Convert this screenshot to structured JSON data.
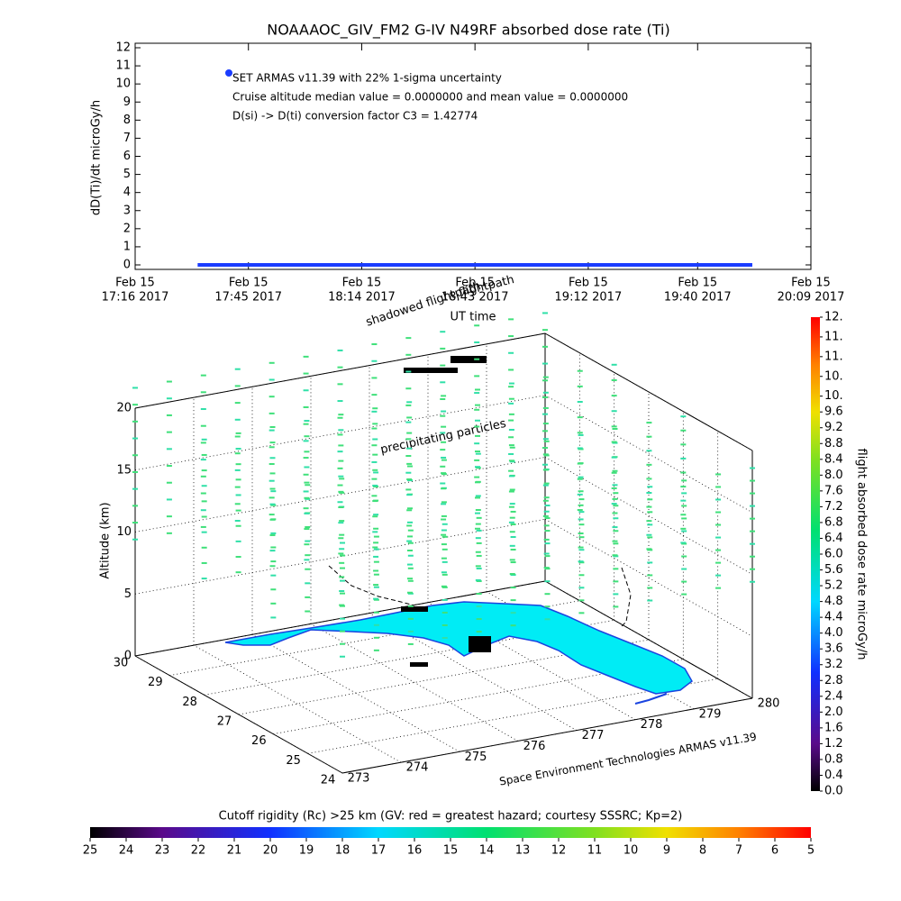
{
  "chart_data": [
    {
      "type": "line",
      "title": "NOAAAOC_GIV_FM2 G-IV    N49RF  absorbed dose rate (Ti)",
      "ylabel": "dD(Ti)/dt microGy/h",
      "xlabel": "UT time",
      "x": [
        "2017-02-15T17:32",
        "2017-02-15T19:54"
      ],
      "series": [
        {
          "name": "SET ARMAS v11.39 with 22% 1-sigma uncertainty",
          "color": "#1a3cff",
          "values": [
            0,
            0
          ]
        }
      ],
      "annotations": [
        "Cruise altitude median value = 0.0000000 and mean value = 0.0000000",
        "D(si) -> D(ti) conversion factor C3 = 1.42774"
      ],
      "xlim": [
        "2017-02-15T17:16",
        "2017-02-15T20:09"
      ],
      "xticks": [
        {
          "value": "2017-02-15T17:16",
          "label": [
            "Feb 15",
            "17:16 2017"
          ]
        },
        {
          "value": "2017-02-15T17:45",
          "label": [
            "Feb 15",
            "17:45 2017"
          ]
        },
        {
          "value": "2017-02-15T18:14",
          "label": [
            "Feb 15",
            "18:14 2017"
          ]
        },
        {
          "value": "2017-02-15T18:43",
          "label": [
            "Feb 15",
            "18:43 2017"
          ]
        },
        {
          "value": "2017-02-15T19:12",
          "label": [
            "Feb 15",
            "19:12 2017"
          ]
        },
        {
          "value": "2017-02-15T19:40",
          "label": [
            "Feb 15",
            "19:40 2017"
          ]
        },
        {
          "value": "2017-02-15T20:09",
          "label": [
            "Feb 15",
            "20:09 2017"
          ]
        }
      ],
      "ylim": [
        0,
        12
      ],
      "yticks": [
        0,
        1,
        2,
        3,
        4,
        5,
        6,
        7,
        8,
        9,
        10,
        11,
        12
      ]
    },
    {
      "type": "map3d",
      "zlabel": "Altitude (km)",
      "annotations": [
        "shadowed flightpath",
        "flightpath",
        "precipitating particles",
        "Space Environment Technologies ARMAS v11.39"
      ],
      "xlim": [
        273,
        280
      ],
      "xticks": [
        273,
        274,
        275,
        276,
        277,
        278,
        279,
        280
      ],
      "ylim": [
        24,
        30
      ],
      "yticks": [
        24,
        25,
        26,
        27,
        28,
        29,
        30
      ],
      "zlim": [
        0,
        20
      ],
      "zticks": [
        0,
        5,
        10,
        15,
        20
      ],
      "grid": true
    },
    {
      "type": "colorbar_vertical",
      "label": "flight absorbed dose rate microGy/h",
      "ylim": [
        0,
        12
      ],
      "yticks": [
        {
          "value": 0,
          "label": "0.0"
        },
        0.4,
        0.8,
        1.2,
        1.6,
        {
          "value": 2,
          "label": "2.0"
        },
        2.4,
        2.8,
        3.2,
        3.6,
        {
          "value": 4,
          "label": "4.0"
        },
        4.4,
        4.8,
        5.2,
        5.6,
        {
          "value": 6,
          "label": "6.0"
        },
        6.4,
        6.8,
        7.2,
        7.6,
        {
          "value": 8,
          "label": "8.0"
        },
        8.4,
        8.8,
        9.2,
        9.6,
        {
          "value": 10,
          "label": "10."
        },
        {
          "value": 10.5,
          "label": "10."
        },
        {
          "value": 11,
          "label": "11."
        },
        {
          "value": 11.5,
          "label": "11."
        },
        {
          "value": 12,
          "label": "12."
        }
      ]
    },
    {
      "type": "colorbar_horizontal",
      "title": "Cutoff rigidity (Rc) >25 km (GV: red = greatest hazard; courtesy SSSRC; Kp=2)",
      "xlim": [
        25,
        5
      ],
      "xticks": [
        25,
        24,
        23,
        22,
        21,
        20,
        19,
        18,
        17,
        16,
        15,
        14,
        13,
        12,
        11,
        10,
        9,
        8,
        7,
        6,
        5
      ]
    }
  ]
}
